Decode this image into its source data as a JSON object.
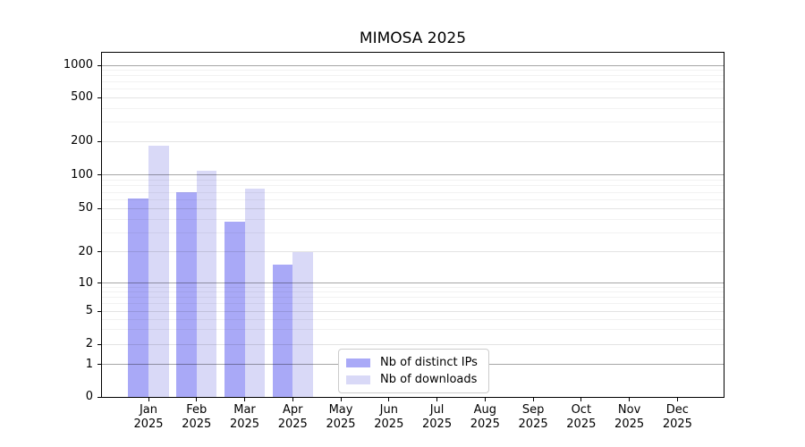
{
  "title": "MIMOSA 2025",
  "chart_data": {
    "type": "bar",
    "title": "MIMOSA 2025",
    "categories": [
      "Jan",
      "Feb",
      "Mar",
      "Apr",
      "May",
      "Jun",
      "Jul",
      "Aug",
      "Sep",
      "Oct",
      "Nov",
      "Dec"
    ],
    "category_year": "2025",
    "series": [
      {
        "name": "Nb of distinct IPs",
        "color": "#a9a9f7",
        "values": [
          62,
          70,
          38,
          15,
          null,
          null,
          null,
          null,
          null,
          null,
          null,
          null
        ]
      },
      {
        "name": "Nb of downloads",
        "color": "#d9d9f7",
        "values": [
          185,
          110,
          75,
          20,
          null,
          null,
          null,
          null,
          null,
          null,
          null,
          null
        ]
      }
    ],
    "y_ticks": [
      0,
      1,
      2,
      5,
      10,
      20,
      50,
      100,
      200,
      500,
      1000
    ],
    "ylim": [
      0,
      1000
    ],
    "y_scale": "log-like",
    "grid": "horizontal",
    "legend_position": "bottom-center"
  }
}
